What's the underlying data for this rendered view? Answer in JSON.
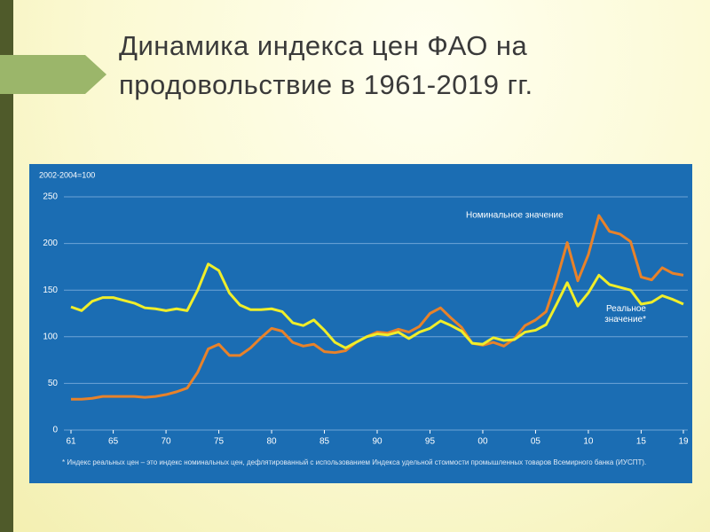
{
  "slide": {
    "title": "Динамика индекса цен ФАО на продовольствие в 1961-2019 гг."
  },
  "chart_data": {
    "type": "line",
    "ylabel": "2002-2004=100",
    "x": [
      1961,
      1962,
      1963,
      1964,
      1965,
      1966,
      1967,
      1968,
      1969,
      1970,
      1971,
      1972,
      1973,
      1974,
      1975,
      1976,
      1977,
      1978,
      1979,
      1980,
      1981,
      1982,
      1983,
      1984,
      1985,
      1986,
      1987,
      1988,
      1989,
      1990,
      1991,
      1992,
      1993,
      1994,
      1995,
      1996,
      1997,
      1998,
      1999,
      2000,
      2001,
      2002,
      2003,
      2004,
      2005,
      2006,
      2007,
      2008,
      2009,
      2010,
      2011,
      2012,
      2013,
      2014,
      2015,
      2016,
      2017,
      2018,
      2019
    ],
    "series": [
      {
        "name": "Номинальное значение",
        "color": "#e8822a",
        "values": [
          33,
          33,
          34,
          36,
          36,
          36,
          36,
          35,
          36,
          38,
          41,
          45,
          62,
          87,
          92,
          80,
          80,
          88,
          99,
          109,
          106,
          94,
          90,
          92,
          84,
          83,
          85,
          94,
          100,
          105,
          104,
          108,
          105,
          111,
          125,
          131,
          120,
          110,
          93,
          91,
          94,
          90,
          98,
          112,
          118,
          127,
          161,
          201,
          160,
          188,
          230,
          213,
          210,
          202,
          164,
          161,
          174,
          168,
          166
        ]
      },
      {
        "name": "Реальное значение*",
        "color": "#f0ee2a",
        "values": [
          132,
          128,
          138,
          142,
          142,
          139,
          136,
          131,
          130,
          128,
          130,
          128,
          150,
          178,
          171,
          147,
          134,
          129,
          129,
          130,
          127,
          115,
          112,
          118,
          107,
          94,
          88,
          94,
          100,
          103,
          102,
          105,
          98,
          105,
          109,
          117,
          112,
          106,
          93,
          92,
          99,
          96,
          97,
          105,
          107,
          113,
          135,
          158,
          133,
          147,
          166,
          156,
          153,
          150,
          135,
          137,
          144,
          140,
          135
        ]
      }
    ],
    "xlim": [
      1961,
      2019
    ],
    "xticks": [
      {
        "value": 1961,
        "label": "61"
      },
      {
        "value": 1965,
        "label": "65"
      },
      {
        "value": 1970,
        "label": "70"
      },
      {
        "value": 1975,
        "label": "75"
      },
      {
        "value": 1980,
        "label": "80"
      },
      {
        "value": 1985,
        "label": "85"
      },
      {
        "value": 1990,
        "label": "90"
      },
      {
        "value": 1995,
        "label": "95"
      },
      {
        "value": 2000,
        "label": "00"
      },
      {
        "value": 2005,
        "label": "05"
      },
      {
        "value": 2010,
        "label": "10"
      },
      {
        "value": 2015,
        "label": "15"
      },
      {
        "value": 2019,
        "label": "19"
      }
    ],
    "ylim": [
      0,
      250
    ],
    "yticks": [
      0,
      50,
      100,
      150,
      200,
      250
    ],
    "grid": true,
    "footnote": "* Индекс реальных цен – это индекс номинальных цен, дефлятированный с использованием Индекса удельной стоимости промышленных товаров Всемирного банка (ИУСПТ)."
  }
}
